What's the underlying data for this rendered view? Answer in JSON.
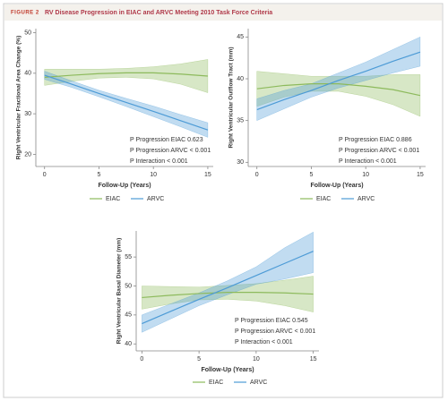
{
  "figure_label": "FIGURE 2",
  "title": "RV Disease Progression in EIAC and ARVC Meeting 2010 Task Force Criteria",
  "chart_data": [
    {
      "type": "line",
      "y_label": "Right Ventricular Fractional Area Change (%)",
      "x_label": "Follow-Up (Years)",
      "x": [
        0,
        2.5,
        5,
        7.5,
        10,
        12.5,
        15
      ],
      "xlim": [
        -0.8,
        15.5
      ],
      "xticks": [
        0,
        5,
        10,
        15
      ],
      "ylim": [
        17,
        51
      ],
      "yticks": [
        20,
        30,
        40,
        50
      ],
      "series": [
        {
          "name": "EIAC",
          "color": "#8dba5c",
          "values": [
            39,
            39.5,
            39.9,
            40.1,
            40.1,
            39.8,
            39.3
          ],
          "lower": [
            37,
            38,
            38.8,
            39,
            38.6,
            37.3,
            35.2
          ],
          "upper": [
            41,
            41,
            41,
            41.2,
            41.6,
            42.3,
            43.4
          ]
        },
        {
          "name": "ARVC",
          "color": "#4d9bd6",
          "values": [
            39.5,
            37.3,
            35,
            32.8,
            30.6,
            28.3,
            26
          ],
          "lower": [
            38.5,
            36.5,
            34.2,
            31.8,
            29.3,
            26.8,
            24.2
          ],
          "upper": [
            40.5,
            38.1,
            35.8,
            33.8,
            31.9,
            29.8,
            27.8
          ]
        }
      ],
      "annotations": [
        "P Progression EIAC 0.623",
        "P Progression ARVC < 0.001",
        "P Interaction < 0.001"
      ]
    },
    {
      "type": "line",
      "y_label": "Right Ventricular Outflow Tract (mm)",
      "x_label": "Follow-Up (Years)",
      "x": [
        0,
        2.5,
        5,
        7.5,
        10,
        12.5,
        15
      ],
      "xlim": [
        -0.8,
        15.5
      ],
      "xticks": [
        0,
        5,
        10,
        15
      ],
      "ylim": [
        29.5,
        46
      ],
      "yticks": [
        30,
        35,
        40,
        45
      ],
      "series": [
        {
          "name": "EIAC",
          "color": "#8dba5c",
          "values": [
            38.8,
            39.2,
            39.4,
            39.4,
            39.1,
            38.7,
            38
          ],
          "lower": [
            36.7,
            37.8,
            38.5,
            38.5,
            37.9,
            36.9,
            35.5
          ],
          "upper": [
            40.9,
            40.6,
            40.3,
            40.3,
            40.3,
            40.5,
            40.5
          ]
        },
        {
          "name": "ARVC",
          "color": "#4d9bd6",
          "values": [
            36.3,
            37.5,
            38.6,
            39.8,
            40.9,
            42.1,
            43.2
          ],
          "lower": [
            35,
            36.4,
            37.8,
            38.9,
            39.8,
            40.7,
            41.5
          ],
          "upper": [
            37.6,
            38.6,
            39.4,
            40.7,
            42,
            43.5,
            45
          ]
        }
      ],
      "annotations": [
        "P Progression EIAC 0.886",
        "P Progression ARVC < 0.001",
        "P Interaction < 0.001"
      ]
    },
    {
      "type": "line",
      "y_label": "Right Ventricular Basal Diameter (mm)",
      "x_label": "Follow-Up (Years)",
      "x": [
        0,
        2.5,
        5,
        7.5,
        10,
        12.5,
        15
      ],
      "xlim": [
        -0.5,
        15.5
      ],
      "xticks": [
        0,
        5,
        10,
        15
      ],
      "ylim": [
        38.8,
        59.5
      ],
      "yticks": [
        40,
        45,
        50,
        55
      ],
      "series": [
        {
          "name": "EIAC",
          "color": "#8dba5c",
          "values": [
            48,
            48.4,
            48.7,
            48.9,
            48.9,
            48.8,
            48.6
          ],
          "lower": [
            46,
            46.9,
            47.6,
            47.7,
            47.4,
            46.6,
            45.5
          ],
          "upper": [
            50,
            49.9,
            49.8,
            50.1,
            50.4,
            51,
            51.7
          ]
        },
        {
          "name": "ARVC",
          "color": "#4d9bd6",
          "values": [
            43.5,
            45.6,
            47.7,
            49.7,
            51.8,
            53.9,
            56
          ],
          "lower": [
            42,
            44.3,
            46.6,
            48.5,
            50.3,
            51.2,
            52.3
          ],
          "upper": [
            45,
            46.9,
            48.8,
            50.9,
            53.3,
            56.6,
            59.3
          ]
        }
      ],
      "annotations": [
        "P Progression EIAC 0.545",
        "P Progression ARVC < 0.001",
        "P Interaction < 0.001"
      ]
    }
  ]
}
